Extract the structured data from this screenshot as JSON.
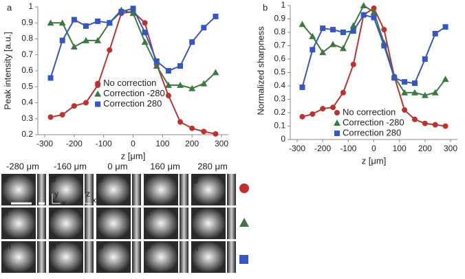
{
  "chart_data": [
    {
      "type": "line",
      "panel": "a",
      "ylabel": "Peak intensity [a.u.]",
      "xlabel": "z [μm]",
      "x": [
        -280,
        -240,
        -200,
        -160,
        -120,
        -80,
        -40,
        0,
        40,
        80,
        120,
        160,
        200,
        240,
        280
      ],
      "xlim": [
        -300,
        300
      ],
      "xticks": [
        -300,
        -200,
        -100,
        0,
        100,
        200,
        300
      ],
      "ylim": [
        0.2,
        1
      ],
      "yticks": [
        0.2,
        0.3,
        0.4,
        0.5,
        0.6,
        0.7,
        0.8,
        0.9,
        1
      ],
      "legend": "center",
      "series": [
        {
          "name": "No correction",
          "color": "#c0312e",
          "marker": "circle",
          "values": [
            0.31,
            0.325,
            0.38,
            0.4,
            0.51,
            0.73,
            0.96,
            0.97,
            0.9,
            0.64,
            0.445,
            0.28,
            0.24,
            0.22,
            0.205
          ]
        },
        {
          "name": "Correction -280",
          "color": "#3b7a3f",
          "marker": "triangle",
          "values": [
            0.9,
            0.9,
            0.75,
            0.79,
            0.79,
            0.9,
            0.98,
            0.96,
            0.78,
            0.63,
            0.51,
            0.51,
            0.49,
            0.52,
            0.59
          ]
        },
        {
          "name": "Correction  280",
          "color": "#3556c4",
          "marker": "square",
          "values": [
            0.555,
            0.79,
            0.92,
            0.88,
            0.91,
            0.9,
            0.97,
            0.99,
            0.84,
            0.66,
            0.6,
            0.63,
            0.78,
            0.87,
            0.94
          ]
        }
      ]
    },
    {
      "type": "line",
      "panel": "b",
      "ylabel": "Normalized sharpness",
      "xlabel": "z [μm]",
      "x": [
        -280,
        -240,
        -200,
        -160,
        -120,
        -80,
        -40,
        0,
        40,
        80,
        120,
        160,
        200,
        240,
        280
      ],
      "xlim": [
        -300,
        300
      ],
      "xticks": [
        -300,
        -200,
        -100,
        0,
        100,
        200,
        300
      ],
      "ylim": [
        0,
        1
      ],
      "yticks": [
        0,
        0.1,
        0.2,
        0.3,
        0.4,
        0.5,
        0.6,
        0.7,
        0.8,
        0.9,
        1
      ],
      "legend": "lower center",
      "series": [
        {
          "name": "No correction",
          "color": "#c0312e",
          "marker": "circle",
          "values": [
            0.17,
            0.19,
            0.23,
            0.24,
            0.35,
            0.56,
            0.93,
            0.98,
            0.82,
            0.47,
            0.22,
            0.15,
            0.12,
            0.11,
            0.1
          ]
        },
        {
          "name": "Correction -280",
          "color": "#3b7a3f",
          "marker": "triangle",
          "values": [
            0.86,
            0.77,
            0.65,
            0.71,
            0.68,
            0.85,
            1,
            0.95,
            0.72,
            0.47,
            0.35,
            0.35,
            0.33,
            0.35,
            0.45
          ]
        },
        {
          "name": "Correction  280",
          "color": "#3556c4",
          "marker": "square",
          "values": [
            0.39,
            0.67,
            0.83,
            0.82,
            0.8,
            0.81,
            0.93,
            0.91,
            0.7,
            0.46,
            0.43,
            0.42,
            0.6,
            0.79,
            0.84
          ]
        }
      ]
    }
  ],
  "image_grid": {
    "columns": [
      "-280 μm",
      "-160 μm",
      "0 μm",
      "160 μm",
      "280 μm"
    ],
    "panels": [
      [
        "c",
        "d",
        "e",
        "f",
        "g"
      ],
      [
        "h",
        "i",
        "j",
        "k",
        "l"
      ],
      [
        "m",
        "n",
        "o",
        "p",
        "q"
      ]
    ],
    "axis_labels": [
      "y",
      "x",
      "z",
      "x"
    ]
  }
}
